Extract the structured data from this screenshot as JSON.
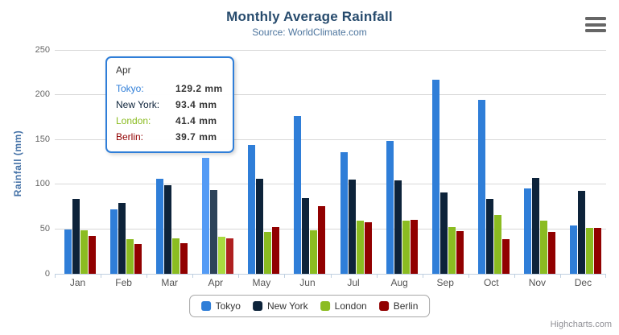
{
  "header": {
    "title": "Monthly Average Rainfall",
    "subtitle": "Source: WorldClimate.com"
  },
  "toolbar": {
    "menu_icon": "hamburger-menu-icon"
  },
  "y_axis": {
    "title": "Rainfall (mm)"
  },
  "tooltip": {
    "header": "Apr",
    "rows": [
      {
        "label": "Tokyo:",
        "value": "129.2 mm",
        "color": "#2f7ed8"
      },
      {
        "label": "New York:",
        "value": "93.4 mm",
        "color": "#0d233a"
      },
      {
        "label": "London:",
        "value": "41.4 mm",
        "color": "#8bbc21"
      },
      {
        "label": "Berlin:",
        "value": "39.7 mm",
        "color": "#910000"
      }
    ],
    "border_color": "#2f7ed8"
  },
  "credits": {
    "label": "Highcharts.com"
  },
  "colors": {
    "title": "#274b6d",
    "subtitle": "#4d759e",
    "axis_title": "#4572a7",
    "grid_line": "#d8d8d8",
    "axis_line": "#c0d0e0"
  },
  "chart_data": {
    "type": "bar",
    "title": "Monthly Average Rainfall",
    "subtitle": "Source: WorldClimate.com",
    "xlabel": "",
    "ylabel": "Rainfall (mm)",
    "ylim": [
      0,
      250
    ],
    "y_ticks": [
      0,
      50,
      100,
      150,
      200,
      250
    ],
    "grid": true,
    "legend_position": "bottom",
    "hovered_category": "Apr",
    "categories": [
      "Jan",
      "Feb",
      "Mar",
      "Apr",
      "May",
      "Jun",
      "Jul",
      "Aug",
      "Sep",
      "Oct",
      "Nov",
      "Dec"
    ],
    "series": [
      {
        "name": "Tokyo",
        "color": "#2f7ed8",
        "hover_color": "#549bf5",
        "values": [
          49.9,
          71.5,
          106.4,
          129.2,
          144.0,
          176.0,
          135.6,
          148.5,
          216.4,
          194.1,
          95.6,
          54.4
        ]
      },
      {
        "name": "New York",
        "color": "#0d233a",
        "hover_color": "#2d4359",
        "values": [
          83.6,
          78.8,
          98.5,
          93.4,
          106.0,
          84.5,
          105.0,
          104.3,
          91.2,
          83.5,
          106.6,
          92.3
        ]
      },
      {
        "name": "London",
        "color": "#8bbc21",
        "hover_color": "#a9da3f",
        "values": [
          48.9,
          38.8,
          39.3,
          41.4,
          47.0,
          48.3,
          59.0,
          59.6,
          52.4,
          65.2,
          59.3,
          51.2
        ]
      },
      {
        "name": "Berlin",
        "color": "#910000",
        "hover_color": "#af2020",
        "values": [
          42.4,
          33.2,
          34.5,
          39.7,
          52.6,
          75.5,
          57.4,
          60.4,
          47.6,
          39.1,
          46.8,
          51.1
        ]
      }
    ]
  }
}
